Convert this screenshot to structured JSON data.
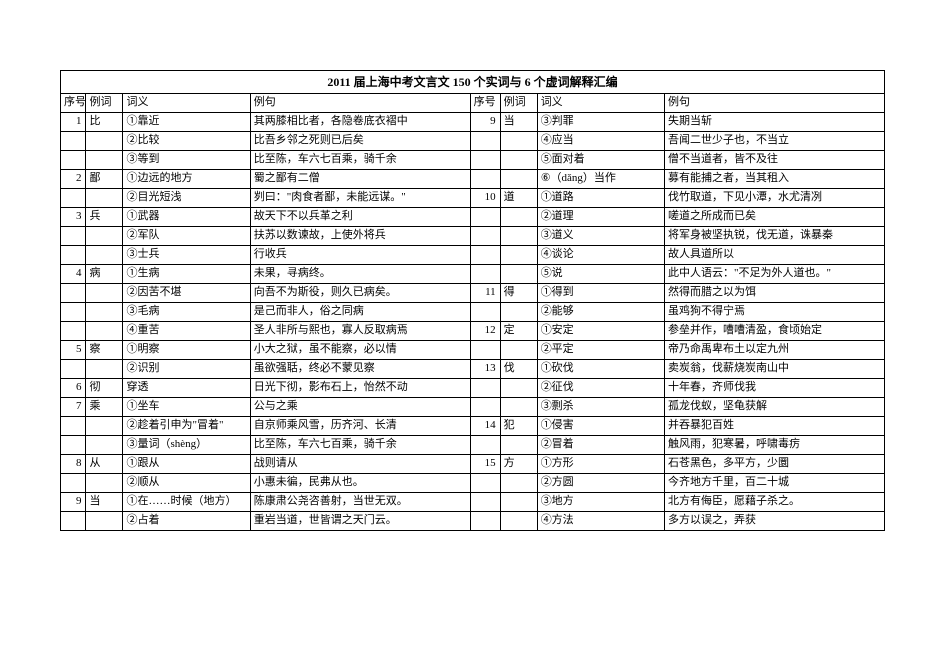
{
  "title": "2011 届上海中考文言文 150 个实词与 6 个虚词解释汇编",
  "headers": {
    "seq": "序号",
    "word": "例词",
    "meaning": "词义",
    "example": "例句"
  },
  "rows": [
    {
      "l_num": "1",
      "l_word": "比",
      "l_mean": "①靠近",
      "l_ex": "其两膝相比者，各隐卷底衣褶中",
      "r_num": "9",
      "r_word": "当",
      "r_mean": "③判罪",
      "r_ex": "失期当斩"
    },
    {
      "l_num": "",
      "l_word": "",
      "l_mean": "②比较",
      "l_ex": "比吾乡邻之死则已后矣",
      "r_num": "",
      "r_word": "",
      "r_mean": "④应当",
      "r_ex": "吾闻二世少子也，不当立"
    },
    {
      "l_num": "",
      "l_word": "",
      "l_mean": "③等到",
      "l_ex": "比至陈，车六七百乘，骑千余",
      "r_num": "",
      "r_word": "",
      "r_mean": "⑤面对着",
      "r_ex": "僧不当道者，皆不及往"
    },
    {
      "l_num": "2",
      "l_word": "鄙",
      "l_mean": "①边远的地方",
      "l_ex": "蜀之鄙有二僧",
      "r_num": "",
      "r_word": "",
      "r_mean": "⑥（dǎng）当作",
      "r_ex": "募有能捕之者，当其租入"
    },
    {
      "l_num": "",
      "l_word": "",
      "l_mean": "②目光短浅",
      "l_ex": "刿曰：\"肉食者鄙，未能远谋。\"",
      "r_num": "10",
      "r_word": "道",
      "r_mean": "①道路",
      "r_ex": "伐竹取道，下见小潭，水尤清冽"
    },
    {
      "l_num": "3",
      "l_word": "兵",
      "l_mean": "①武器",
      "l_ex": "故天下不以兵革之利",
      "r_num": "",
      "r_word": "",
      "r_mean": "②道理",
      "r_ex": "嗟道之所成而已矣"
    },
    {
      "l_num": "",
      "l_word": "",
      "l_mean": "②军队",
      "l_ex": "扶苏以数谏故，上使外将兵",
      "r_num": "",
      "r_word": "",
      "r_mean": "③道义",
      "r_ex": "将军身被坚执锐，伐无道，诛暴秦"
    },
    {
      "l_num": "",
      "l_word": "",
      "l_mean": "③士兵",
      "l_ex": "行收兵",
      "r_num": "",
      "r_word": "",
      "r_mean": "④谈论",
      "r_ex": "故人具道所以"
    },
    {
      "l_num": "4",
      "l_word": "病",
      "l_mean": "①生病",
      "l_ex": "未果，寻病终。",
      "r_num": "",
      "r_word": "",
      "r_mean": "⑤说",
      "r_ex": "此中人语云：\"不足为外人道也。\""
    },
    {
      "l_num": "",
      "l_word": "",
      "l_mean": "②因苦不堪",
      "l_ex": "向吾不为斯役，则久已病矣。",
      "r_num": "11",
      "r_word": "得",
      "r_mean": "①得到",
      "r_ex": "然得而腊之以为饵"
    },
    {
      "l_num": "",
      "l_word": "",
      "l_mean": "③毛病",
      "l_ex": "是己而非人，俗之同病",
      "r_num": "",
      "r_word": "",
      "r_mean": "②能够",
      "r_ex": "虽鸡狗不得宁焉"
    },
    {
      "l_num": "",
      "l_word": "",
      "l_mean": "④重苦",
      "l_ex": "圣人非所与熙也，寡人反取病焉",
      "r_num": "12",
      "r_word": "定",
      "r_mean": "①安定",
      "r_ex": "参垒并作，嘈嘈清盈，食顷始定"
    },
    {
      "l_num": "5",
      "l_word": "察",
      "l_mean": "①明察",
      "l_ex": "小大之狱，虽不能察，必以情",
      "r_num": "",
      "r_word": "",
      "r_mean": "②平定",
      "r_ex": "帝乃命禹卑布土以定九州"
    },
    {
      "l_num": "",
      "l_word": "",
      "l_mean": "②识别",
      "l_ex": "虽欲强聒，终必不蒙见察",
      "r_num": "13",
      "r_word": "伐",
      "r_mean": "①砍伐",
      "r_ex": "卖炭翁，伐薪烧炭南山中"
    },
    {
      "l_num": "6",
      "l_word": "彻",
      "l_mean": "穿透",
      "l_ex": "日光下彻，影布石上，怡然不动",
      "r_num": "",
      "r_word": "",
      "r_mean": "②征伐",
      "r_ex": "十年春，齐师伐我"
    },
    {
      "l_num": "7",
      "l_word": "乘",
      "l_mean": "①坐车",
      "l_ex": "公与之乘",
      "r_num": "",
      "r_word": "",
      "r_mean": "③剽杀",
      "r_ex": "孤龙伐蚁，坚龟获解"
    },
    {
      "l_num": "",
      "l_word": "",
      "l_mean": "②趁着引申为\"冒着\"",
      "l_ex": "自京师乘风雪，历齐河、长清",
      "r_num": "14",
      "r_word": "犯",
      "r_mean": "①侵害",
      "r_ex": "并吞暴犯百姓"
    },
    {
      "l_num": "",
      "l_word": "",
      "l_mean": "③量词（shèng）",
      "l_ex": "比至陈，车六七百乘，骑千余",
      "r_num": "",
      "r_word": "",
      "r_mean": "②冒着",
      "r_ex": "触风雨，犯寒暑，呼啸毒疠"
    },
    {
      "l_num": "8",
      "l_word": "从",
      "l_mean": "①跟从",
      "l_ex": "战则请从",
      "r_num": "15",
      "r_word": "方",
      "r_mean": "①方形",
      "r_ex": "石苍黑色，多平方，少圜"
    },
    {
      "l_num": "",
      "l_word": "",
      "l_mean": "②顺从",
      "l_ex": "小惠未徧，民弗从也。",
      "r_num": "",
      "r_word": "",
      "r_mean": "②方圆",
      "r_ex": "今齐地方千里，百二十城"
    },
    {
      "l_num": "9",
      "l_word": "当",
      "l_mean": "①在……时候（地方）",
      "l_ex": "陈康肃公尧咨善射，当世无双。",
      "r_num": "",
      "r_word": "",
      "r_mean": "③地方",
      "r_ex": "北方有侮臣，愿藉子杀之。"
    },
    {
      "l_num": "",
      "l_word": "",
      "l_mean": "②占着",
      "l_ex": "重岩当道，世皆谓之天门云。",
      "r_num": "",
      "r_word": "",
      "r_mean": "④方法",
      "r_ex": "多方以误之，弄获"
    }
  ]
}
